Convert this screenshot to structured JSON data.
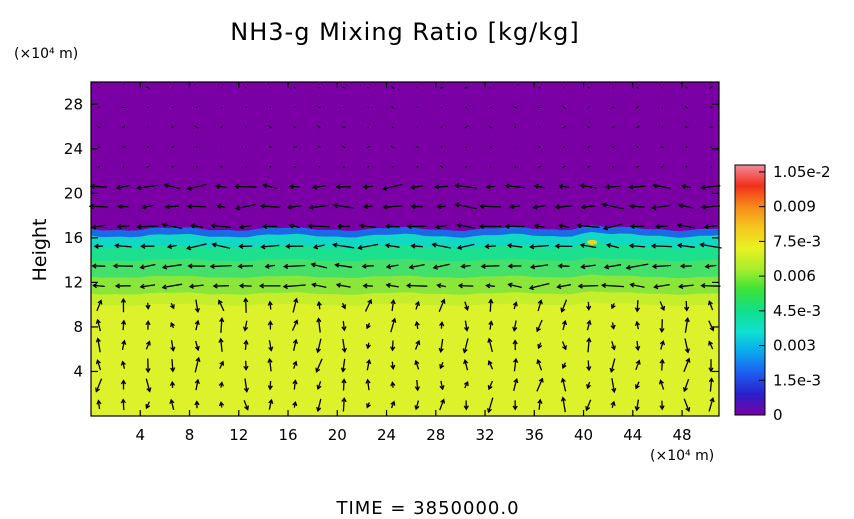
{
  "chart_data": {
    "type": "heatmap",
    "title": "NH3-g Mixing Ratio [kg/kg]",
    "ylabel": "Height",
    "y_unit": "(×10⁴ m)",
    "x_unit": "(×10⁴ m)",
    "xlim": [
      0,
      51
    ],
    "ylim": [
      0,
      30
    ],
    "x_ticks": [
      "4",
      "8",
      "12",
      "16",
      "20",
      "24",
      "28",
      "32",
      "36",
      "40",
      "44",
      "48"
    ],
    "y_ticks": [
      "4",
      "8",
      "12",
      "16",
      "20",
      "24",
      "28"
    ],
    "colorbar": {
      "range": [
        0,
        0.0108
      ],
      "tick_labels": [
        "0",
        "1.5e-3",
        "0.003",
        "4.5e-3",
        "0.006",
        "7.5e-3",
        "0.009",
        "1.05e-2"
      ],
      "colors": [
        "#7a00a6",
        "#2a1fc8",
        "#1f5cf0",
        "#0aa6f0",
        "#0fe0d0",
        "#10e08a",
        "#3ce23a",
        "#a6ee2a",
        "#eaf222",
        "#f5c81e",
        "#f78a1a",
        "#f2301c",
        "#f08a9a"
      ]
    },
    "layers": [
      {
        "y_range": [
          0,
          10
        ],
        "value": 0.0078,
        "color": "#ddf22a"
      },
      {
        "y_range": [
          10,
          11
        ],
        "value": 0.0076,
        "color": "#c6ee2a"
      },
      {
        "y_range": [
          11,
          12.5
        ],
        "value": 0.0068,
        "color": "#8be63a"
      },
      {
        "y_range": [
          12.5,
          14
        ],
        "value": 0.0062,
        "color": "#45e06a"
      },
      {
        "y_range": [
          14,
          15.2
        ],
        "value": 0.0055,
        "color": "#1ce08e"
      },
      {
        "y_range": [
          15.2,
          16.2
        ],
        "value": 0.0048,
        "color": "#11d8c4"
      },
      {
        "y_range": [
          16.2,
          16.8
        ],
        "value": 0.002,
        "color": "#1a6ae8"
      },
      {
        "y_range": [
          16.8,
          30
        ],
        "value": 0,
        "color": "#7a00a6"
      }
    ],
    "time_label": "TIME = 3850000.0"
  }
}
